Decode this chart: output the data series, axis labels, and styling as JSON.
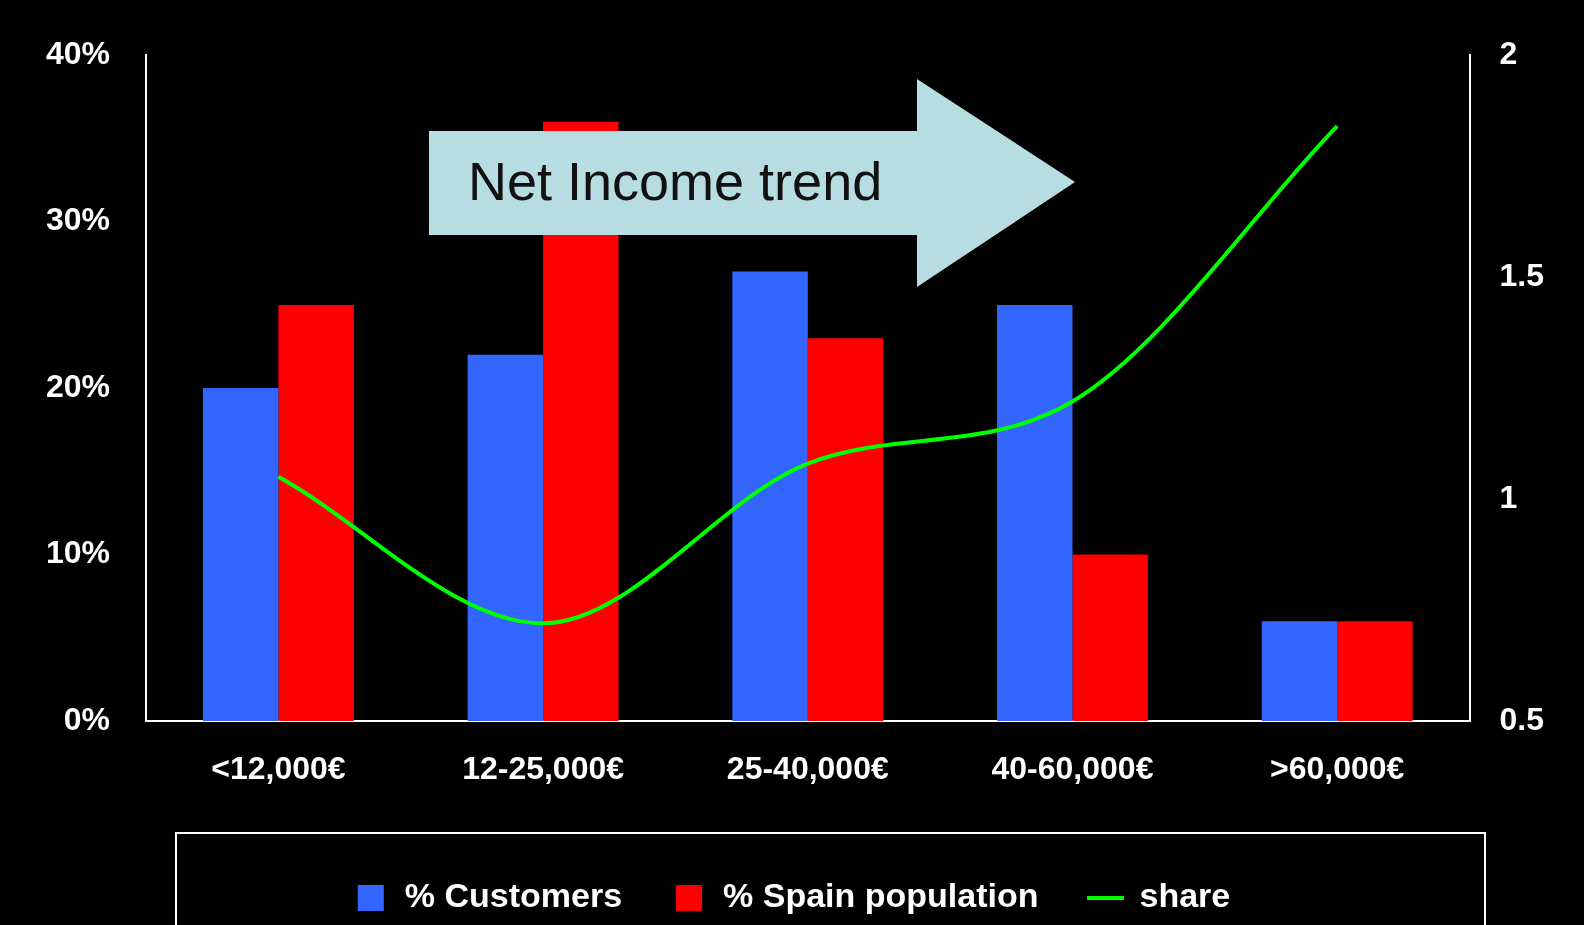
{
  "chart_data": {
    "type": "bar",
    "categories": [
      "<12,000€",
      "12-25,000€",
      "25-40,000€",
      "40-60,000€",
      ">60,000€"
    ],
    "series": [
      {
        "name": "% Customers",
        "color": "#3366ff",
        "values": [
          20,
          22,
          27,
          25,
          6
        ]
      },
      {
        "name": "% Spain population",
        "color": "#ff0000",
        "values": [
          25,
          36,
          23,
          10,
          6
        ]
      },
      {
        "name": "share",
        "type": "line",
        "axis": "y2",
        "color": "#00ff00",
        "values": [
          1.05,
          0.72,
          1.08,
          1.22,
          1.84
        ]
      }
    ],
    "ylim": [
      0,
      40
    ],
    "yticks": [
      {
        "value": 0,
        "label": "0%"
      },
      {
        "value": 10,
        "label": "10%"
      },
      {
        "value": 20,
        "label": "20%"
      },
      {
        "value": 30,
        "label": "30%"
      },
      {
        "value": 40,
        "label": "40%"
      }
    ],
    "y2lim": [
      0.5,
      2
    ],
    "y2ticks": [
      0.5,
      1,
      1.5,
      2
    ],
    "legend": "bottom",
    "grid": false,
    "marker": "none",
    "line_style": "solid",
    "annotations": [
      "Net Income trend"
    ]
  }
}
